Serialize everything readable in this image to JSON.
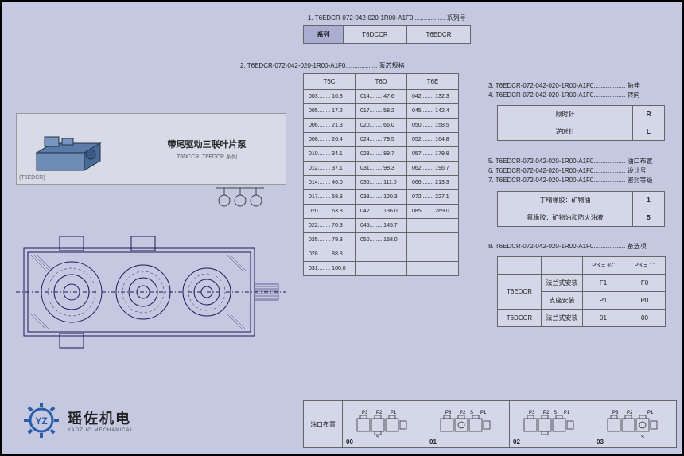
{
  "headings": {
    "h1": "1. T6EDCR-072-042-020-1R00-A1F0.................. 系列号",
    "h2": "2. T6EDCR-072-042-020-1R00-A1F0.................. 泵芯规格",
    "h3": "3. T6EDCR-072-042-020-1R00-A1F0.................. 轴伸",
    "h4": "4. T6EDCR-072-042-020-1R00-A1F0.................. 转向",
    "h5": "5. T6EDCR-072-042-020-1R00-A1F0.................. 油口布置",
    "h6": "6. T6EDCR-072-042-020-1R00-A1F0.................. 设计号",
    "h7": "7. T6EDCR-072-042-020-1R00-A1F0.................. 密封等级",
    "h8": "8. T6EDCR-072-042-020-1R00-A1F0.................. 备选项"
  },
  "series": {
    "label": "系列",
    "c1": "T6DCCR",
    "c2": "T6EDCR"
  },
  "spec": {
    "heads": [
      "T6C",
      "T6D",
      "T6E"
    ],
    "rows": [
      [
        "003........ 10.8",
        "014........ 47.6",
        "042........ 132.3"
      ],
      [
        "005........ 17.2",
        "017........ 58.2",
        "045........ 142.4"
      ],
      [
        "006........ 21.3",
        "020........ 66.0",
        "050........ 158.5"
      ],
      [
        "008........ 26.4",
        "024........ 79.5",
        "052........ 164.8"
      ],
      [
        "010........ 34.1",
        "028........ 89.7",
        "057........ 179.8"
      ],
      [
        "012........ 37.1",
        "031........ 98.3",
        "062........ 196.7"
      ],
      [
        "014........ 46.0",
        "035........ 111.0",
        "066........ 213.3"
      ],
      [
        "017........ 58.3",
        "038........ 120.3",
        "072........ 227.1"
      ],
      [
        "020........ 63.8",
        "042........ 136.0",
        "085........ 269.0"
      ],
      [
        "022........ 70.3",
        "045........ 145.7",
        ""
      ],
      [
        "025........ 79.3",
        "050........ 158.0",
        ""
      ],
      [
        "028........ 88.8",
        "",
        ""
      ],
      [
        "031........ 100.0",
        "",
        ""
      ]
    ]
  },
  "rotation": {
    "cw": "顺时针",
    "cw_v": "R",
    "ccw": "逆时针",
    "ccw_v": "L"
  },
  "seal": {
    "r1": "丁晴橡胶：矿物油",
    "r1v": "1",
    "r2": "氟橡胶：矿物油和防火油液",
    "r2v": "5"
  },
  "options": {
    "p3a": "P3 = ¾\"",
    "p3b": "P3 = 1\"",
    "m1": "T6EDCR",
    "m2": "T6DCCR",
    "flange": "法兰式安装",
    "foot": "支座安装",
    "v_f1": "F1",
    "v_f0": "F0",
    "v_p1": "P1",
    "v_p0": "P0",
    "v_01": "01",
    "v_00": "00"
  },
  "port": {
    "label": "油口布置",
    "codes": [
      "00",
      "01",
      "02",
      "03"
    ]
  },
  "product": {
    "title": "带尾驱动三联叶片泵",
    "sub": "T6DCCR, T6EDCR 系列",
    "model": "(T6EDCR)"
  },
  "logo": {
    "cn": "瑶佐机电",
    "en": "YAOZUO MECHANICAL"
  }
}
